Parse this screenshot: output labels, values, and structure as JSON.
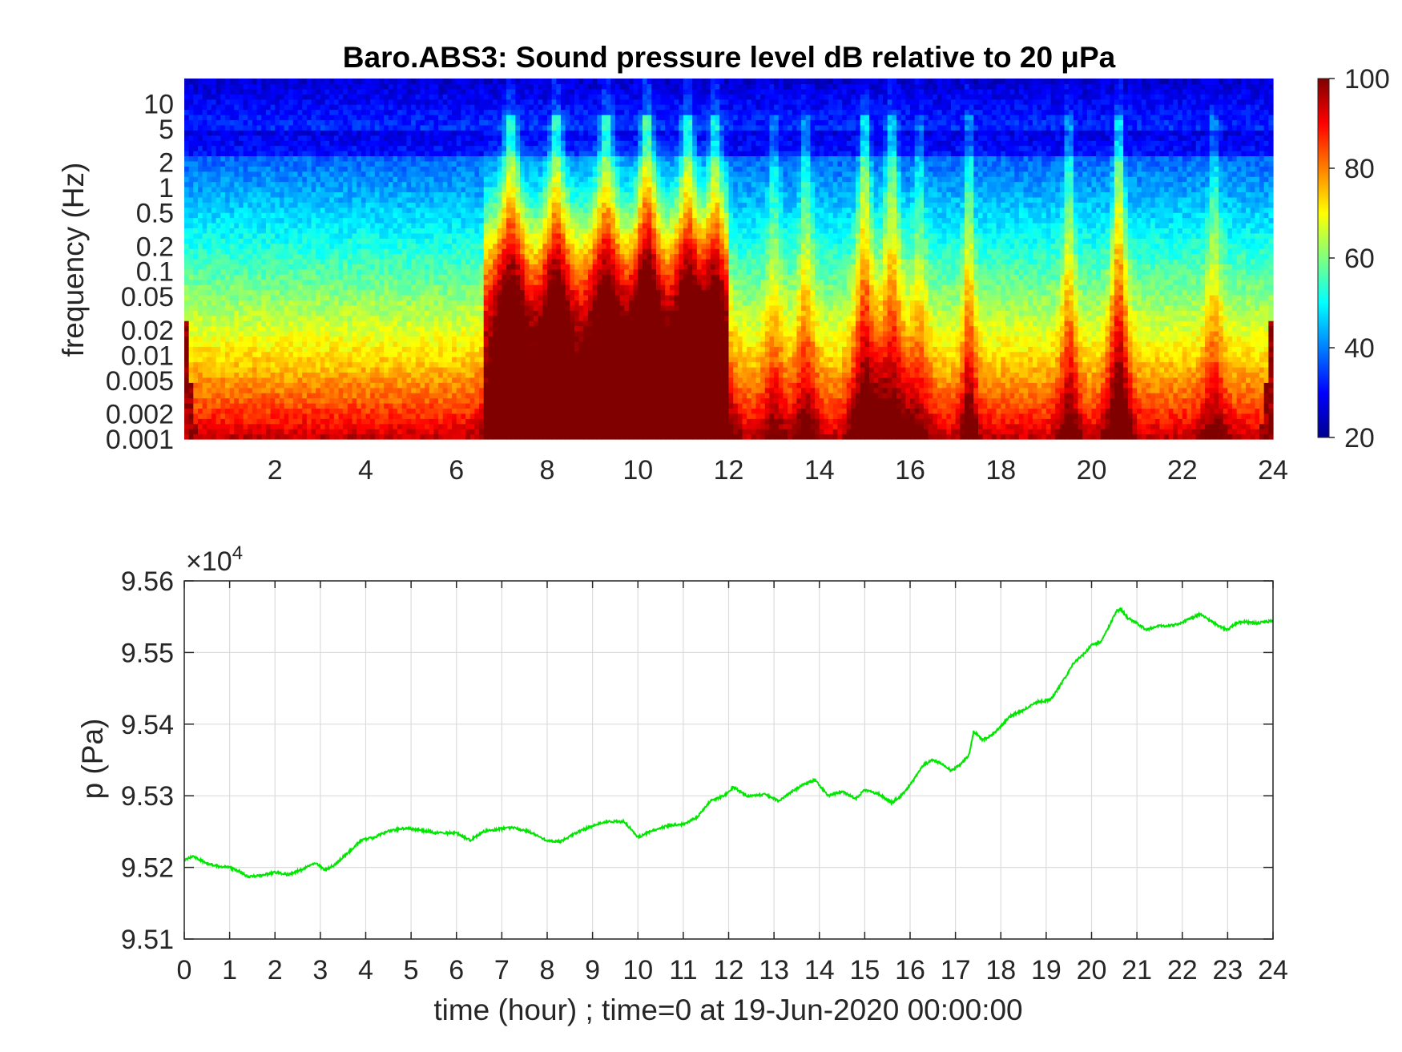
{
  "figure": {
    "title": "Baro.ABS3: Sound pressure level dB relative to 20 μPa"
  },
  "chart_data": [
    {
      "type": "heatmap",
      "title": "Baro.ABS3: Sound pressure level dB relative to 20 μPa",
      "ylabel": "frequency (Hz)",
      "xlabel": "",
      "y_scale": "log",
      "xlim": [
        0,
        24
      ],
      "ylim": [
        0.001,
        20
      ],
      "x_ticks": [
        2,
        4,
        6,
        8,
        10,
        12,
        14,
        16,
        18,
        20,
        22,
        24
      ],
      "x_tick_labels": [
        "2",
        "4",
        "6",
        "8",
        "10",
        "12",
        "14",
        "16",
        "18",
        "20",
        "22",
        "24"
      ],
      "y_ticks": [
        0.001,
        0.002,
        0.005,
        0.01,
        0.02,
        0.05,
        0.1,
        0.2,
        0.5,
        1,
        2,
        5,
        10
      ],
      "y_tick_labels": [
        "0.001",
        "0.002",
        "0.005",
        "0.01",
        "0.02",
        "0.05",
        "0.1",
        "0.2",
        "0.5",
        "1",
        "2",
        "5",
        "10"
      ],
      "colormap": "jet",
      "colorbar": {
        "range": [
          20,
          100
        ],
        "ticks": [
          20,
          40,
          60,
          80,
          100
        ],
        "tick_labels": [
          "20",
          "40",
          "60",
          "80",
          "100"
        ]
      },
      "grid": false,
      "events": [
        {
          "time": 7.2,
          "width": 0.55,
          "height": 1.0
        },
        {
          "time": 8.2,
          "width": 0.5,
          "height": 1.0
        },
        {
          "time": 9.3,
          "width": 0.55,
          "height": 1.0
        },
        {
          "time": 10.2,
          "width": 0.5,
          "height": 1.2
        },
        {
          "time": 11.1,
          "width": 0.5,
          "height": 1.0
        },
        {
          "time": 11.7,
          "width": 0.45,
          "height": 0.9
        },
        {
          "time": 13.0,
          "width": 0.3,
          "height": 0.45
        },
        {
          "time": 13.7,
          "width": 0.3,
          "height": 0.6
        },
        {
          "time": 15.0,
          "width": 0.35,
          "height": 1.0
        },
        {
          "time": 15.6,
          "width": 0.4,
          "height": 0.85
        },
        {
          "time": 16.2,
          "width": 0.3,
          "height": 0.45
        },
        {
          "time": 17.3,
          "width": 0.2,
          "height": 0.75
        },
        {
          "time": 19.5,
          "width": 0.25,
          "height": 0.7
        },
        {
          "time": 20.6,
          "width": 0.3,
          "height": 1.05
        },
        {
          "time": 22.7,
          "width": 0.3,
          "height": 0.5
        }
      ]
    },
    {
      "type": "line",
      "xlabel": "time (hour) ; time=0 at 19-Jun-2020 00:00:00",
      "ylabel": "p (Pa)",
      "xlim": [
        0,
        24
      ],
      "ylim": [
        95100,
        95600
      ],
      "y_multiplier_base": "×10",
      "y_multiplier_exp": "4",
      "x_ticks": [
        0,
        1,
        2,
        3,
        4,
        5,
        6,
        7,
        8,
        9,
        10,
        11,
        12,
        13,
        14,
        15,
        16,
        17,
        18,
        19,
        20,
        21,
        22,
        23,
        24
      ],
      "x_tick_labels": [
        "0",
        "1",
        "2",
        "3",
        "4",
        "5",
        "6",
        "7",
        "8",
        "9",
        "10",
        "11",
        "12",
        "13",
        "14",
        "15",
        "16",
        "17",
        "18",
        "19",
        "20",
        "21",
        "22",
        "23",
        "24"
      ],
      "y_ticks": [
        95100,
        95200,
        95300,
        95400,
        95500,
        95600
      ],
      "y_tick_labels": [
        "9.51",
        "9.52",
        "9.53",
        "9.54",
        "9.55",
        "9.56"
      ],
      "grid": true,
      "line_color": "#00e600",
      "series": [
        {
          "x": [
            0,
            0.2,
            0.5,
            0.8,
            1.0,
            1.2,
            1.4,
            1.7,
            2.0,
            2.3,
            2.6,
            2.9,
            3.1,
            3.3,
            3.6,
            3.9,
            4.2,
            4.5,
            4.9,
            5.2,
            5.6,
            6.0,
            6.3,
            6.6,
            6.9,
            7.2,
            7.6,
            8.0,
            8.3,
            8.6,
            9.0,
            9.3,
            9.7,
            10.0,
            10.3,
            10.7,
            11.0,
            11.3,
            11.6,
            11.9,
            12.1,
            12.4,
            12.8,
            13.1,
            13.4,
            13.6,
            13.9,
            14.2,
            14.5,
            14.8,
            15.0,
            15.3,
            15.6,
            15.8,
            16.0,
            16.3,
            16.5,
            16.7,
            16.9,
            17.1,
            17.3,
            17.4,
            17.6,
            17.8,
            18.0,
            18.2,
            18.5,
            18.8,
            19.1,
            19.4,
            19.6,
            19.8,
            20.0,
            20.2,
            20.4,
            20.55,
            20.65,
            20.8,
            21.0,
            21.2,
            21.5,
            21.8,
            22.0,
            22.2,
            22.4,
            22.6,
            22.8,
            23.0,
            23.2,
            23.4,
            23.6,
            24.0
          ],
          "y": [
            95210,
            95216,
            95205,
            95201,
            95200,
            95195,
            95187,
            95189,
            95193,
            95190,
            95197,
            95207,
            95196,
            95203,
            95220,
            95238,
            95242,
            95251,
            95255,
            95252,
            95248,
            95248,
            95238,
            95250,
            95253,
            95256,
            95250,
            95237,
            95236,
            95247,
            95258,
            95264,
            95264,
            95242,
            95251,
            95259,
            95260,
            95270,
            95293,
            95300,
            95312,
            95300,
            95302,
            95293,
            95306,
            95314,
            95322,
            95300,
            95306,
            95296,
            95308,
            95303,
            95290,
            95300,
            95315,
            95343,
            95350,
            95345,
            95335,
            95343,
            95357,
            95390,
            95378,
            95384,
            95397,
            95411,
            95420,
            95431,
            95434,
            95463,
            95485,
            95496,
            95510,
            95515,
            95538,
            95558,
            95560,
            95548,
            95541,
            95532,
            95537,
            95538,
            95542,
            95548,
            95554,
            95545,
            95537,
            95532,
            95542,
            95543,
            95541,
            95544
          ]
        }
      ]
    }
  ]
}
